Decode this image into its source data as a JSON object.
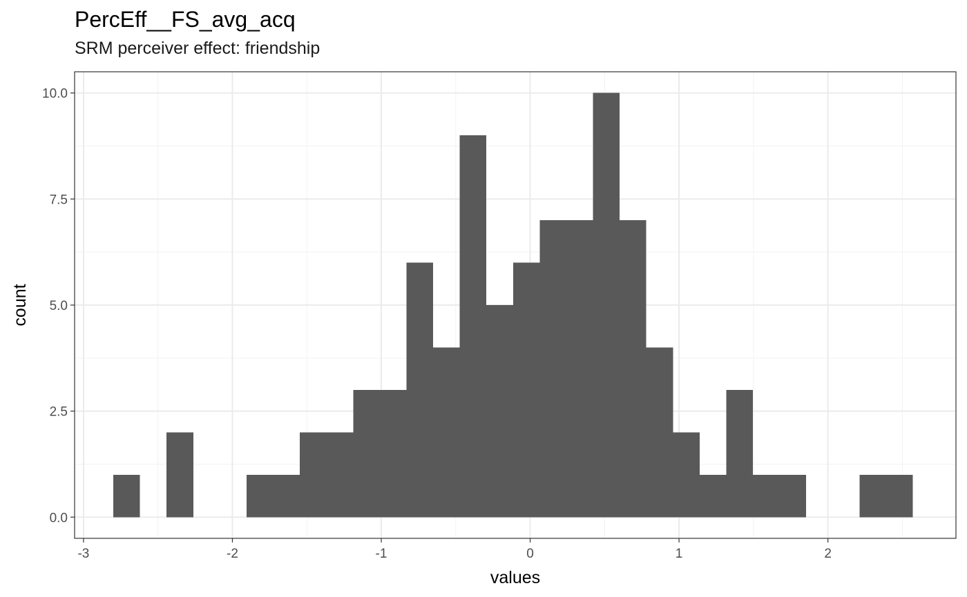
{
  "chart_data": {
    "type": "bar",
    "title": "PercEff__FS_avg_acq",
    "subtitle": "SRM perceiver effect: friendship",
    "xlabel": "values",
    "ylabel": "count",
    "xlim": [
      -3.06,
      2.86
    ],
    "ylim": [
      -0.5,
      10.5
    ],
    "x_ticks": [
      -3,
      -2,
      -1,
      0,
      1,
      2
    ],
    "x_tick_labels": [
      "-3",
      "-2",
      "-1",
      "0",
      "1",
      "2"
    ],
    "y_ticks": [
      0,
      2.5,
      5,
      7.5,
      10
    ],
    "y_tick_labels": [
      "0.0",
      "2.5",
      "5.0",
      "7.5",
      "10.0"
    ],
    "bins": {
      "start": -2.8,
      "width": 0.179,
      "counts": [
        1,
        0,
        2,
        0,
        0,
        1,
        1,
        2,
        2,
        3,
        3,
        6,
        4,
        9,
        5,
        6,
        7,
        7,
        10,
        7,
        4,
        2,
        1,
        3,
        1,
        1,
        0,
        0,
        1,
        1
      ]
    },
    "bar_color": "#595959",
    "grid": true,
    "legend": "none"
  }
}
